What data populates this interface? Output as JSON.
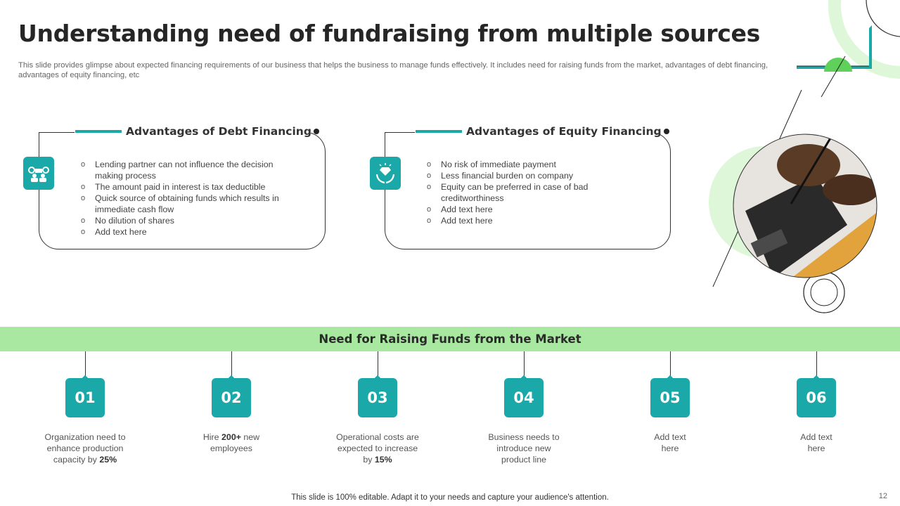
{
  "title": "Understanding need of fundraising from multiple sources",
  "subtitle": "This slide provides glimpse about expected financing requirements of our business that helps the business to manage funds effectively. It includes need for raising funds from the market, advantages of debt financing, advantages of equity financing, etc",
  "debt": {
    "heading": "Advantages of Debt Financing",
    "icon": "people-gears-icon",
    "items": [
      "Lending partner can not influence the decision making process",
      "The amount paid in interest is tax deductible",
      "Quick source of obtaining funds which results in immediate cash flow",
      "No dilution of shares",
      "Add text here"
    ]
  },
  "equity": {
    "heading": "Advantages of Equity Financing",
    "icon": "hands-diamond-icon",
    "items": [
      "No risk of immediate payment",
      "Less financial burden on company",
      "Equity can be preferred in case of bad creditworthiness",
      "Add text here",
      "Add text here"
    ]
  },
  "market": {
    "heading": "Need for Raising Funds from the Market",
    "steps": [
      {
        "num": "01",
        "pre": "Organization need to enhance production capacity by ",
        "bold": "25%",
        "post": ""
      },
      {
        "num": "02",
        "pre": "Hire ",
        "bold": "200+",
        "post": " new employees"
      },
      {
        "num": "03",
        "pre": "Operational costs are expected to increase by ",
        "bold": "15%",
        "post": ""
      },
      {
        "num": "04",
        "pre": "Business needs to introduce new product line",
        "bold": "",
        "post": ""
      },
      {
        "num": "05",
        "pre": "Add text here",
        "bold": "",
        "post": ""
      },
      {
        "num": "06",
        "pre": "Add text here",
        "bold": "",
        "post": ""
      }
    ]
  },
  "footer": "This slide is 100% editable. Adapt it to your needs and capture your audience's attention.",
  "page_number": "12",
  "colors": {
    "accent": "#1aa8a8",
    "band": "#a8e8a0",
    "light_green": "#ddf7d8"
  }
}
